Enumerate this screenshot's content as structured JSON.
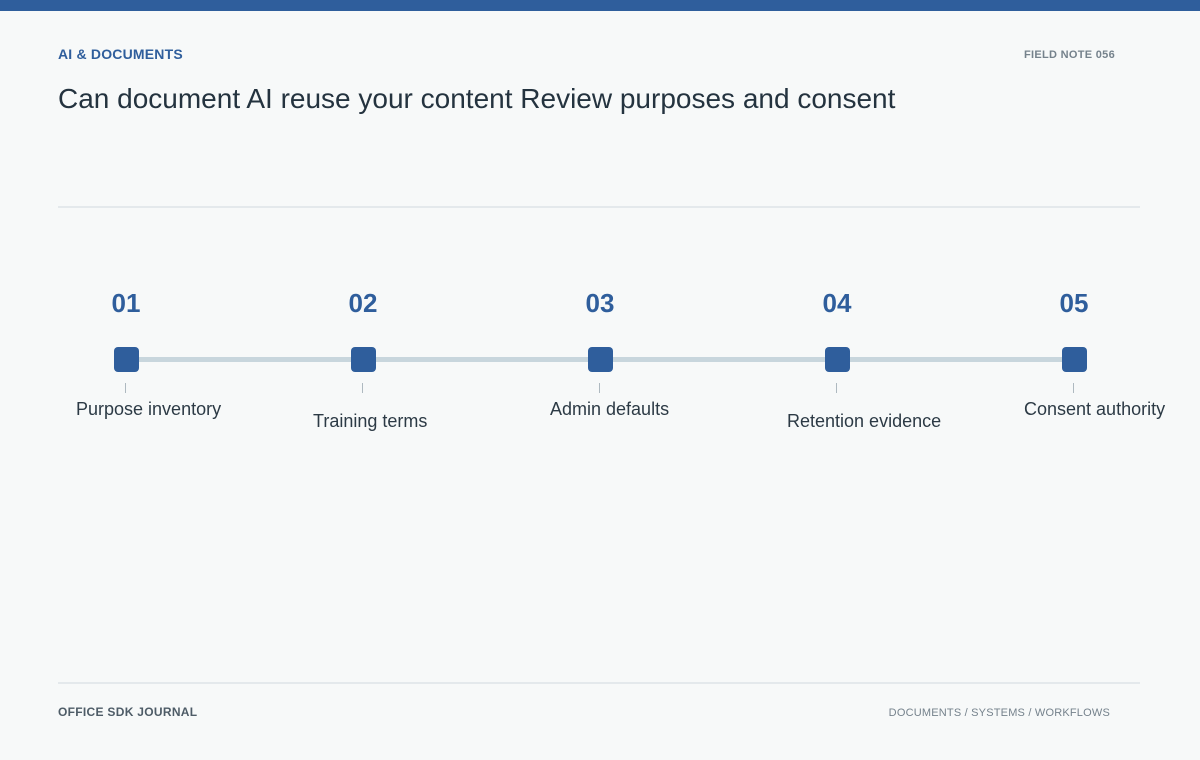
{
  "header": {
    "kicker": "AI & DOCUMENTS",
    "note_id": "FIELD NOTE 056",
    "title": "Can document AI reuse your content Review purposes and consent"
  },
  "timeline": {
    "steps": [
      {
        "number": "01",
        "label": "Purpose inventory"
      },
      {
        "number": "02",
        "label": "Training terms"
      },
      {
        "number": "03",
        "label": "Admin defaults"
      },
      {
        "number": "04",
        "label": "Retention evidence"
      },
      {
        "number": "05",
        "label": "Consent authority"
      }
    ]
  },
  "footer": {
    "brand": "OFFICE SDK JOURNAL",
    "path": "DOCUMENTS / SYSTEMS / WORKFLOWS"
  },
  "colors": {
    "accent": "#2f5e9c",
    "track": "#c8d6dd",
    "background": "#f7f9f9"
  }
}
